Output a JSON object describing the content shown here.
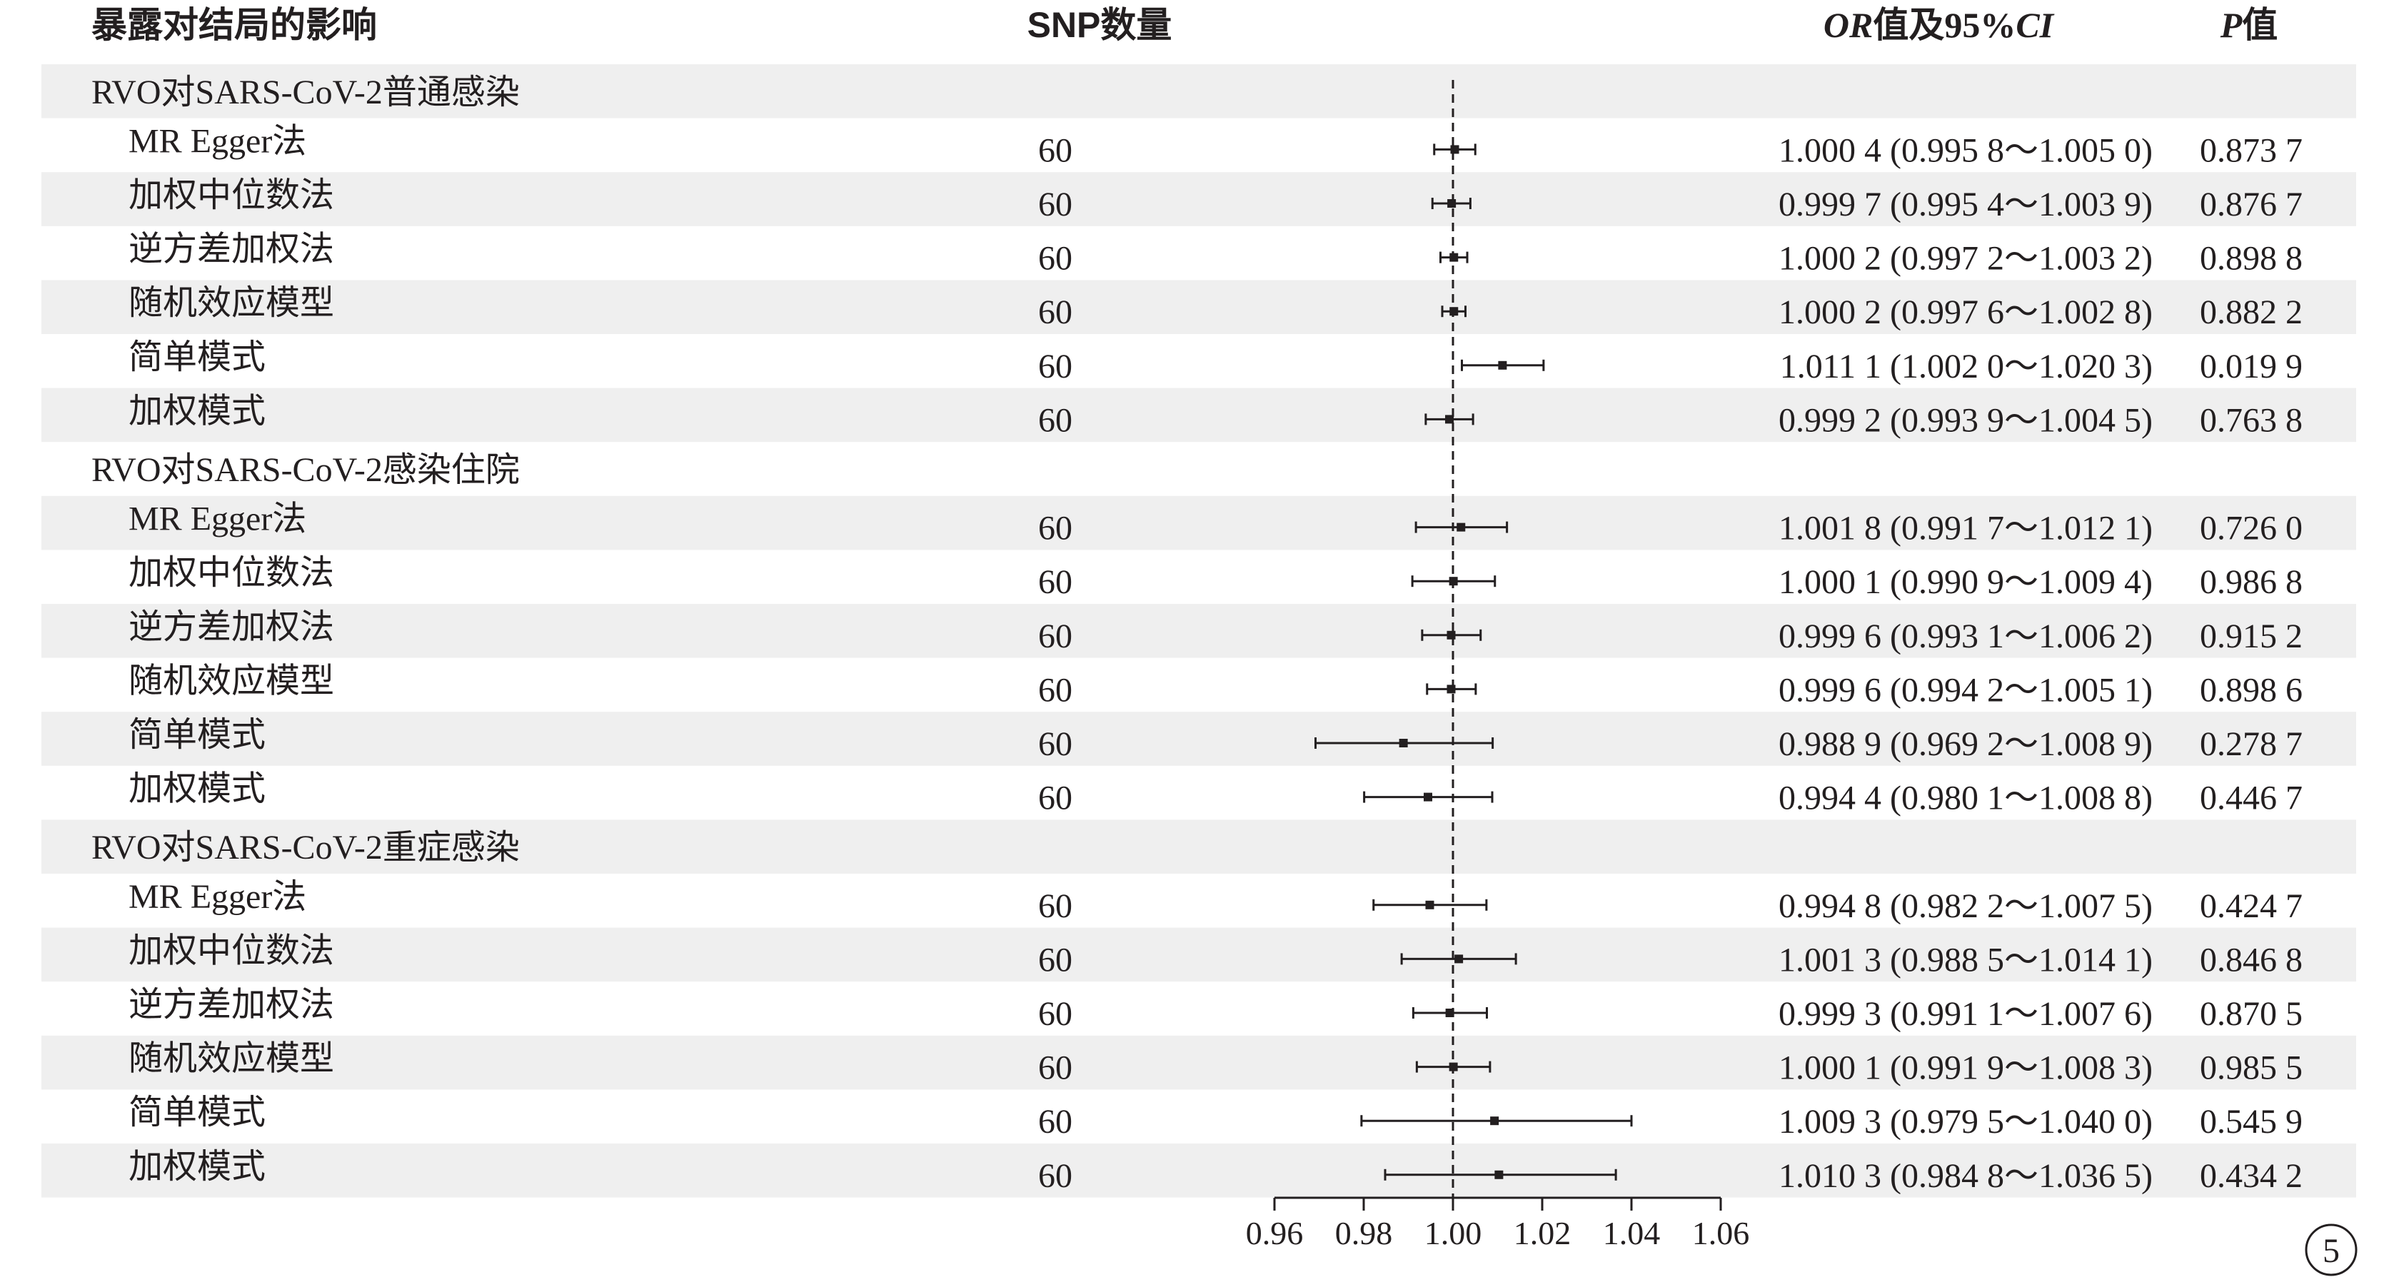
{
  "headers": {
    "exposure": "暴露对结局的影响",
    "snp": "SNP数量",
    "or_ci_or": "OR",
    "or_ci_mid": "值及95%",
    "or_ci_ci": "CI",
    "p_letter": "P",
    "p_suffix": "值"
  },
  "page_number": "5",
  "colors": {
    "stripe": "#efefef",
    "ink": "#231f20"
  },
  "chart_data": {
    "type": "forest",
    "reference_line": 1.0,
    "reference_line_style": "dashed",
    "xlim": [
      0.96,
      1.06
    ],
    "x_ticks": [
      0.96,
      0.98,
      1.0,
      1.02,
      1.04,
      1.06
    ],
    "x_tick_labels": [
      "0.96",
      "0.98",
      "1.00",
      "1.02",
      "1.04",
      "1.06"
    ],
    "groups": [
      {
        "label": "RVO对SARS-CoV-2普通感染",
        "rows": [
          {
            "method": "MR Egger法",
            "snp": "60",
            "or": 1.0004,
            "lo": 0.9958,
            "hi": 1.005,
            "or_text": "1.000 4 (0.995 8～1.005 0)",
            "p_text": "0.873 7"
          },
          {
            "method": "加权中位数法",
            "snp": "60",
            "or": 0.9997,
            "lo": 0.9954,
            "hi": 1.0039,
            "or_text": "0.999 7 (0.995 4～1.003 9)",
            "p_text": "0.876 7"
          },
          {
            "method": "逆方差加权法",
            "snp": "60",
            "or": 1.0002,
            "lo": 0.9972,
            "hi": 1.0032,
            "or_text": "1.000 2 (0.997 2～1.003 2)",
            "p_text": "0.898 8"
          },
          {
            "method": "随机效应模型",
            "snp": "60",
            "or": 1.0002,
            "lo": 0.9976,
            "hi": 1.0028,
            "or_text": "1.000 2 (0.997 6～1.002 8)",
            "p_text": "0.882 2"
          },
          {
            "method": "简单模式",
            "snp": "60",
            "or": 1.0111,
            "lo": 1.002,
            "hi": 1.0203,
            "or_text": "1.011 1 (1.002 0～1.020 3)",
            "p_text": "0.019 9"
          },
          {
            "method": "加权模式",
            "snp": "60",
            "or": 0.9992,
            "lo": 0.9939,
            "hi": 1.0045,
            "or_text": "0.999 2 (0.993 9～1.004 5)",
            "p_text": "0.763 8"
          }
        ]
      },
      {
        "label": "RVO对SARS-CoV-2感染住院",
        "rows": [
          {
            "method": "MR Egger法",
            "snp": "60",
            "or": 1.0018,
            "lo": 0.9917,
            "hi": 1.0121,
            "or_text": "1.001 8 (0.991 7～1.012 1)",
            "p_text": "0.726 0"
          },
          {
            "method": "加权中位数法",
            "snp": "60",
            "or": 1.0001,
            "lo": 0.9909,
            "hi": 1.0094,
            "or_text": "1.000 1 (0.990 9～1.009 4)",
            "p_text": "0.986 8"
          },
          {
            "method": "逆方差加权法",
            "snp": "60",
            "or": 0.9996,
            "lo": 0.9931,
            "hi": 1.0062,
            "or_text": "0.999 6 (0.993 1～1.006 2)",
            "p_text": "0.915 2"
          },
          {
            "method": "随机效应模型",
            "snp": "60",
            "or": 0.9996,
            "lo": 0.9942,
            "hi": 1.0051,
            "or_text": "0.999 6 (0.994 2～1.005 1)",
            "p_text": "0.898 6"
          },
          {
            "method": "简单模式",
            "snp": "60",
            "or": 0.9889,
            "lo": 0.9692,
            "hi": 1.0089,
            "or_text": "0.988 9 (0.969 2～1.008 9)",
            "p_text": "0.278 7"
          },
          {
            "method": "加权模式",
            "snp": "60",
            "or": 0.9944,
            "lo": 0.9801,
            "hi": 1.0088,
            "or_text": "0.994 4 (0.980 1～1.008 8)",
            "p_text": "0.446 7"
          }
        ]
      },
      {
        "label": "RVO对SARS-CoV-2重症感染",
        "rows": [
          {
            "method": "MR Egger法",
            "snp": "60",
            "or": 0.9948,
            "lo": 0.9822,
            "hi": 1.0075,
            "or_text": "0.994 8 (0.982 2～1.007 5)",
            "p_text": "0.424 7"
          },
          {
            "method": "加权中位数法",
            "snp": "60",
            "or": 1.0013,
            "lo": 0.9885,
            "hi": 1.0141,
            "or_text": "1.001 3 (0.988 5～1.014 1)",
            "p_text": "0.846 8"
          },
          {
            "method": "逆方差加权法",
            "snp": "60",
            "or": 0.9993,
            "lo": 0.9911,
            "hi": 1.0076,
            "or_text": "0.999 3 (0.991 1～1.007 6)",
            "p_text": "0.870 5"
          },
          {
            "method": "随机效应模型",
            "snp": "60",
            "or": 1.0001,
            "lo": 0.9919,
            "hi": 1.0083,
            "or_text": "1.000 1 (0.991 9～1.008 3)",
            "p_text": "0.985 5"
          },
          {
            "method": "简单模式",
            "snp": "60",
            "or": 1.0093,
            "lo": 0.9795,
            "hi": 1.04,
            "or_text": "1.009 3 (0.979 5～1.040 0)",
            "p_text": "0.545 9"
          },
          {
            "method": "加权模式",
            "snp": "60",
            "or": 1.0103,
            "lo": 0.9848,
            "hi": 1.0365,
            "or_text": "1.010 3 (0.984 8～1.036 5)",
            "p_text": "0.434 2"
          }
        ]
      }
    ]
  }
}
